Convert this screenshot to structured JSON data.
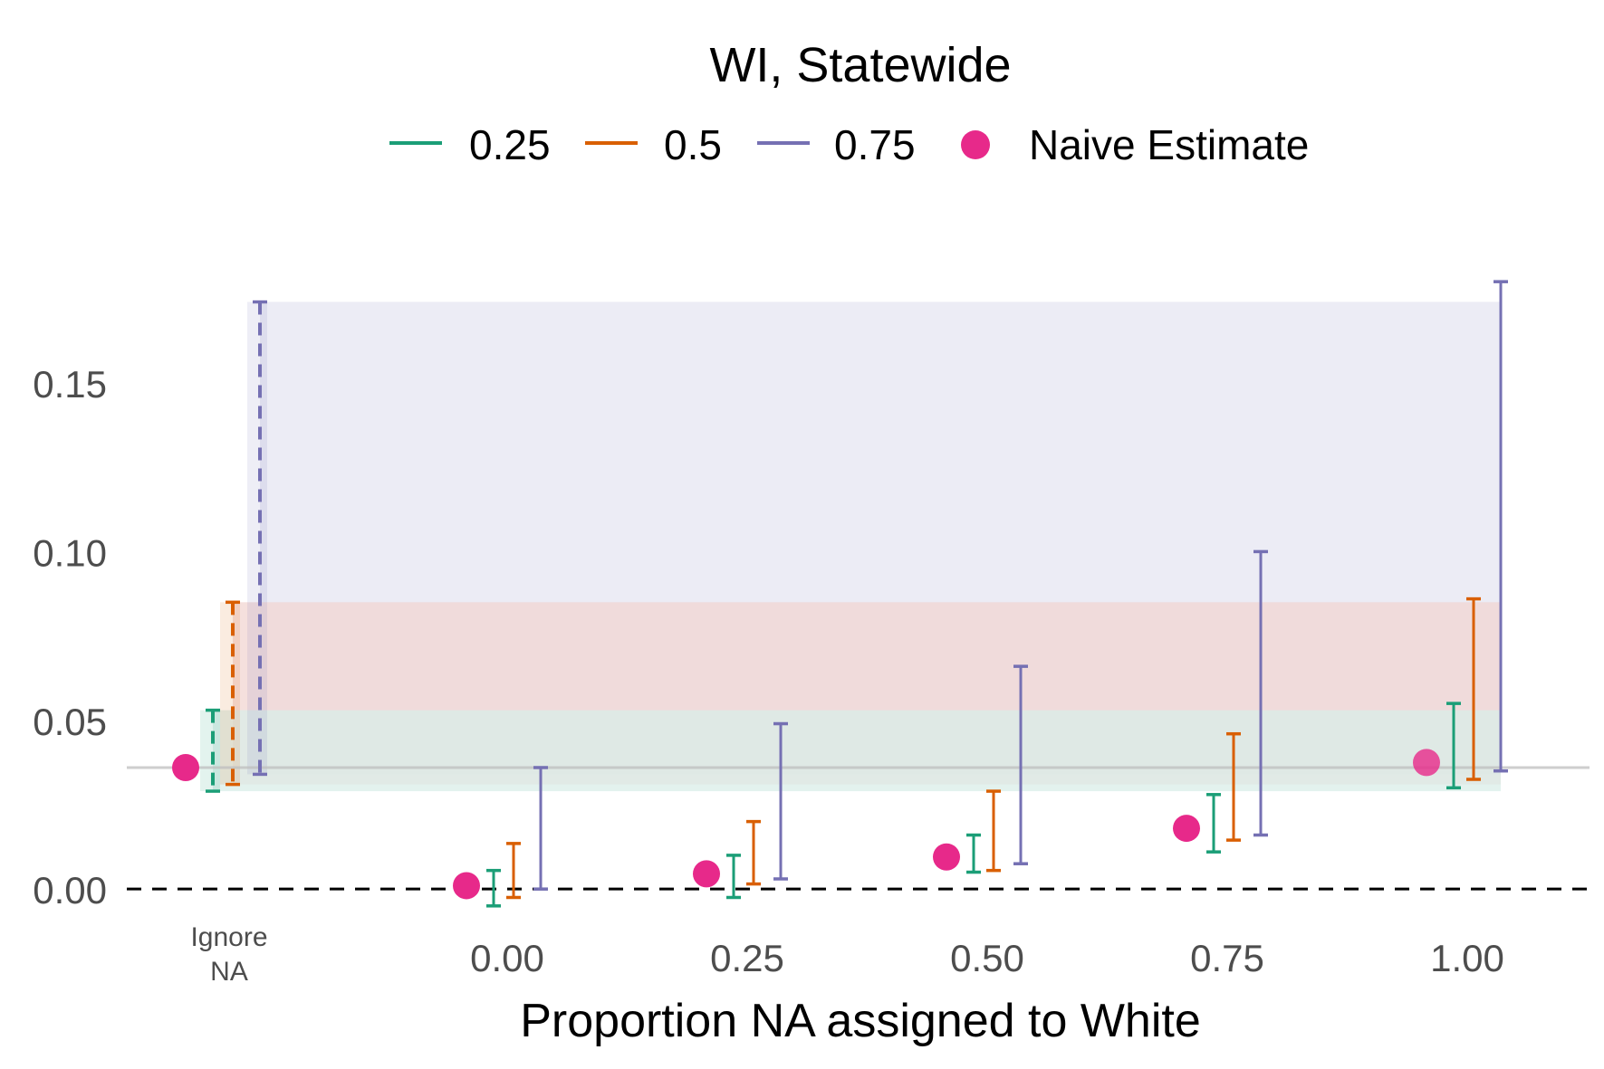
{
  "chart_data": {
    "type": "errorbar",
    "title": "WI, Statewide",
    "xlabel": "Proportion NA assigned to White",
    "ylabel": "",
    "ylim": [
      -0.008,
      0.183
    ],
    "y_ticks": [
      "0.00",
      "0.05",
      "0.10",
      "0.15"
    ],
    "y_tick_values": [
      0,
      0.05,
      0.1,
      0.15
    ],
    "x_categories": [
      "Ignore NA",
      "0.00",
      "0.25",
      "0.50",
      "0.75",
      "1.00"
    ],
    "x_tick_labels": [
      [
        "Ignore",
        "NA"
      ],
      [
        "0.00"
      ],
      [
        "0.25"
      ],
      [
        "0.50"
      ],
      [
        "0.75"
      ],
      [
        "1.00"
      ]
    ],
    "legend_placement": "top",
    "legend": [
      {
        "label": "0.25",
        "color": "#1b9e77",
        "kind": "line"
      },
      {
        "label": "0.5",
        "color": "#d95f02",
        "kind": "line"
      },
      {
        "label": "0.75",
        "color": "#7570b3",
        "kind": "line"
      },
      {
        "label": "Naive Estimate",
        "color": "#e7298a",
        "kind": "point"
      }
    ],
    "naive_estimate_color": "#e7298a",
    "naive_estimates": [
      {
        "category": "Ignore NA",
        "value": 0.036
      },
      {
        "category": "0.00",
        "value": 0.001
      },
      {
        "category": "0.25",
        "value": 0.0045
      },
      {
        "category": "0.50",
        "value": 0.0095
      },
      {
        "category": "0.75",
        "value": 0.018
      },
      {
        "category": "1.00",
        "value": 0.0375
      }
    ],
    "series": [
      {
        "name": "0.25",
        "color": "#1b9e77",
        "intervals": [
          {
            "category": "Ignore NA",
            "lower": 0.029,
            "upper": 0.053
          },
          {
            "category": "0.00",
            "lower": -0.005,
            "upper": 0.0055
          },
          {
            "category": "0.25",
            "lower": -0.0025,
            "upper": 0.01
          },
          {
            "category": "0.50",
            "lower": 0.005,
            "upper": 0.016
          },
          {
            "category": "0.75",
            "lower": 0.011,
            "upper": 0.028
          },
          {
            "category": "1.00",
            "lower": 0.03,
            "upper": 0.055
          }
        ]
      },
      {
        "name": "0.5",
        "color": "#d95f02",
        "intervals": [
          {
            "category": "Ignore NA",
            "lower": 0.031,
            "upper": 0.085
          },
          {
            "category": "0.00",
            "lower": -0.0025,
            "upper": 0.0135
          },
          {
            "category": "0.25",
            "lower": 0.0015,
            "upper": 0.02
          },
          {
            "category": "0.50",
            "lower": 0.0055,
            "upper": 0.029
          },
          {
            "category": "0.75",
            "lower": 0.0145,
            "upper": 0.046
          },
          {
            "category": "1.00",
            "lower": 0.0325,
            "upper": 0.086
          }
        ]
      },
      {
        "name": "0.75",
        "color": "#7570b3",
        "intervals": [
          {
            "category": "Ignore NA",
            "lower": 0.034,
            "upper": 0.174
          },
          {
            "category": "0.00",
            "lower": 0.0,
            "upper": 0.036
          },
          {
            "category": "0.25",
            "lower": 0.003,
            "upper": 0.049
          },
          {
            "category": "0.50",
            "lower": 0.0075,
            "upper": 0.066
          },
          {
            "category": "0.75",
            "lower": 0.016,
            "upper": 0.1
          },
          {
            "category": "1.00",
            "lower": 0.035,
            "upper": 0.18
          }
        ]
      }
    ],
    "reference_lines": [
      {
        "value": 0.0,
        "style": "dashed",
        "color": "#000000"
      },
      {
        "value": 0.036,
        "style": "solid",
        "color": "#bdbdbd"
      }
    ],
    "grid": false
  }
}
